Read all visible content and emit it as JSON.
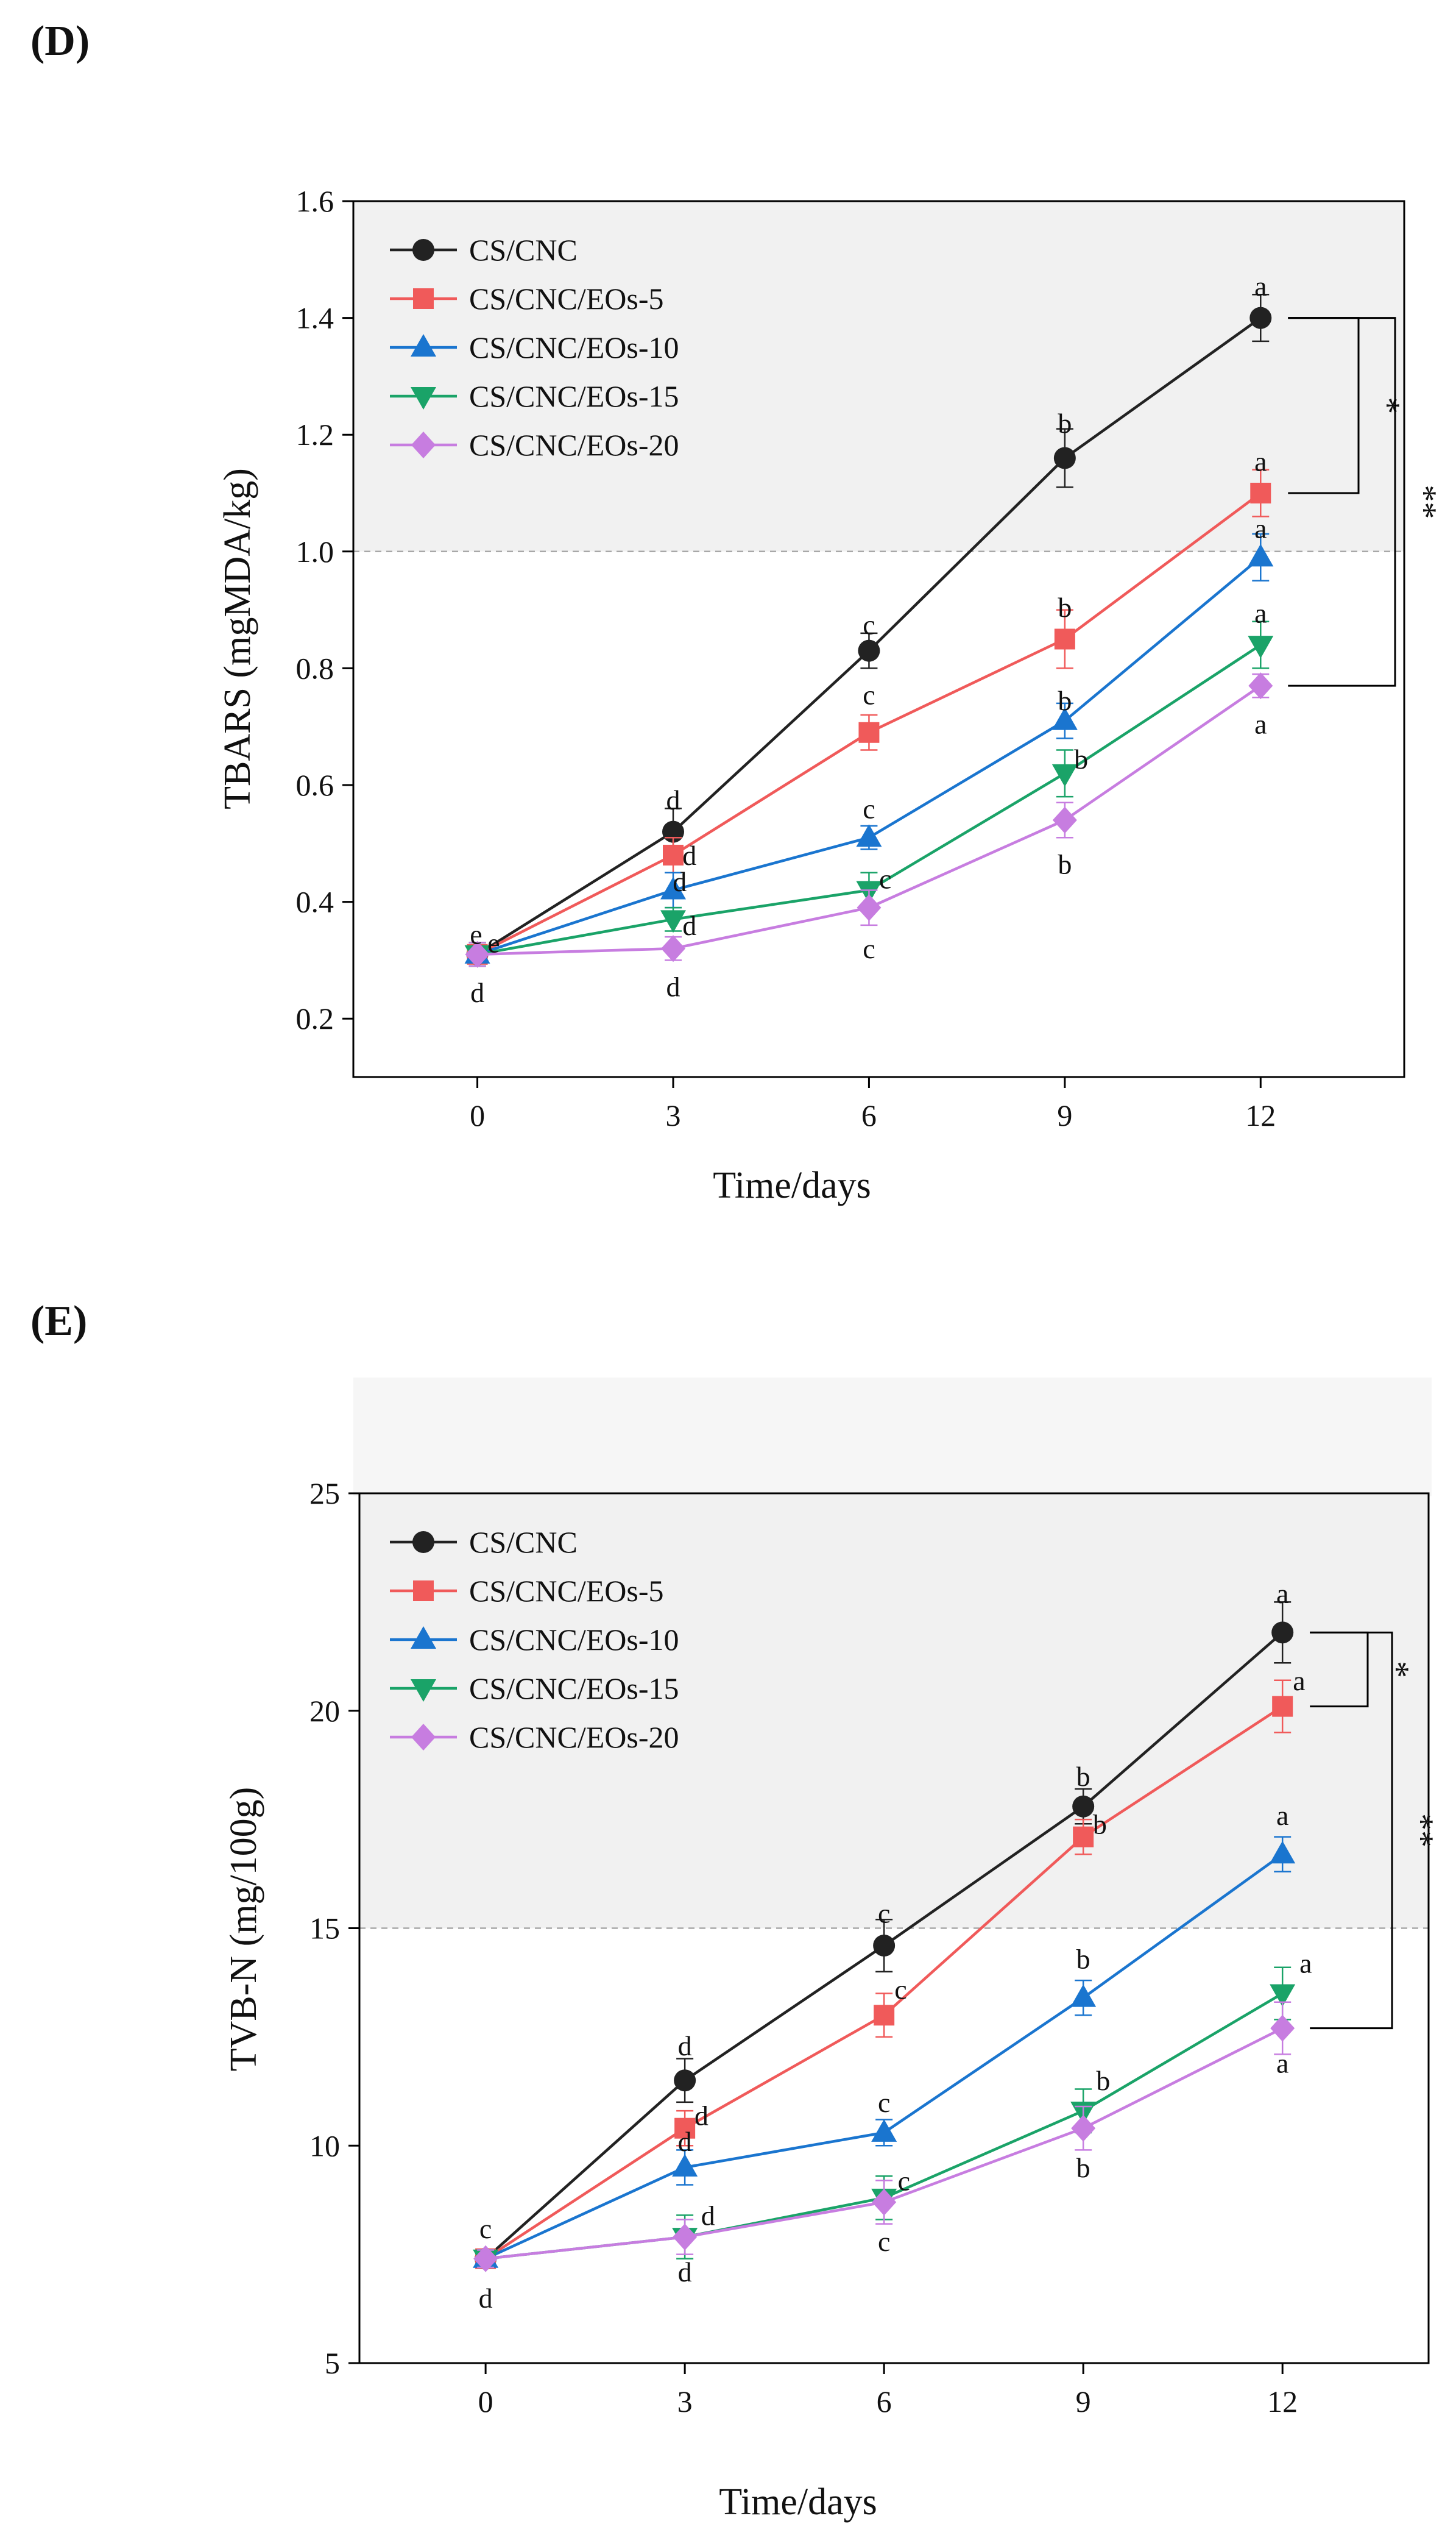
{
  "chart_data": [
    {
      "type": "line",
      "panel_label": "(D)",
      "xlabel": "Time/days",
      "ylabel": "TBARS (mgMDA/kg)",
      "xlim": [
        -1.9,
        14.2
      ],
      "ylim": [
        0.1,
        1.6
      ],
      "xticks": [
        0,
        3,
        6,
        9,
        12
      ],
      "yticks": [
        0.2,
        0.4,
        0.6,
        0.8,
        1.0,
        1.2,
        1.4,
        1.6
      ],
      "ytick_labels": [
        "0.2",
        "0.4",
        "0.6",
        "0.8",
        "1.0",
        "1.2",
        "1.4",
        "1.6"
      ],
      "threshold": 1.0,
      "shade_from": 1.0,
      "x": [
        0,
        3,
        6,
        9,
        12
      ],
      "series": [
        {
          "name": "CS/CNC",
          "color": "#222222",
          "marker": "circle",
          "values": [
            0.31,
            0.52,
            0.83,
            1.16,
            1.4
          ],
          "errors": [
            0.02,
            0.04,
            0.03,
            0.05,
            0.04
          ]
        },
        {
          "name": "CS/CNC/EOs-5",
          "color": "#f05a5a",
          "marker": "square",
          "values": [
            0.31,
            0.48,
            0.69,
            0.85,
            1.1
          ],
          "errors": [
            0.02,
            0.03,
            0.03,
            0.05,
            0.04
          ]
        },
        {
          "name": "CS/CNC/EOs-10",
          "color": "#1a75cf",
          "marker": "triangle-up",
          "values": [
            0.31,
            0.42,
            0.51,
            0.71,
            0.99
          ],
          "errors": [
            0.02,
            0.03,
            0.02,
            0.03,
            0.04
          ]
        },
        {
          "name": "CS/CNC/EOs-15",
          "color": "#1aa368",
          "marker": "triangle-down",
          "values": [
            0.31,
            0.37,
            0.42,
            0.62,
            0.84
          ],
          "errors": [
            0.02,
            0.02,
            0.03,
            0.04,
            0.04
          ]
        },
        {
          "name": "CS/CNC/EOs-20",
          "color": "#c77de0",
          "marker": "diamond",
          "values": [
            0.31,
            0.32,
            0.39,
            0.54,
            0.77
          ],
          "errors": [
            0.02,
            0.02,
            0.03,
            0.03,
            0.02
          ]
        }
      ],
      "annotations": [
        {
          "text": "e",
          "x": -0.02,
          "y": 0.345
        },
        {
          "text": "e",
          "x": 0.25,
          "y": 0.33
        },
        {
          "text": "d",
          "x": 0.0,
          "y": 0.245
        },
        {
          "text": "d",
          "x": 3.0,
          "y": 0.575
        },
        {
          "text": "d",
          "x": 3.25,
          "y": 0.48
        },
        {
          "text": "d",
          "x": 3.1,
          "y": 0.435
        },
        {
          "text": "d",
          "x": 3.25,
          "y": 0.36
        },
        {
          "text": "d",
          "x": 3.0,
          "y": 0.255
        },
        {
          "text": "c",
          "x": 6.0,
          "y": 0.875
        },
        {
          "text": "c",
          "x": 6.0,
          "y": 0.755
        },
        {
          "text": "c",
          "x": 6.0,
          "y": 0.56
        },
        {
          "text": "c",
          "x": 6.25,
          "y": 0.44
        },
        {
          "text": "c",
          "x": 6.0,
          "y": 0.32
        },
        {
          "text": "b",
          "x": 9.0,
          "y": 1.22
        },
        {
          "text": "b",
          "x": 9.0,
          "y": 0.905
        },
        {
          "text": "b",
          "x": 9.0,
          "y": 0.745
        },
        {
          "text": "b",
          "x": 9.25,
          "y": 0.645
        },
        {
          "text": "b",
          "x": 9.0,
          "y": 0.465
        },
        {
          "text": "a",
          "x": 12.0,
          "y": 1.455
        },
        {
          "text": "a",
          "x": 12.0,
          "y": 1.155
        },
        {
          "text": "a",
          "x": 12.0,
          "y": 1.04
        },
        {
          "text": "a",
          "x": 12.0,
          "y": 0.895
        },
        {
          "text": "a",
          "x": 12.0,
          "y": 0.705
        }
      ],
      "significance": [
        {
          "label": "*",
          "y_top": 1.4,
          "y_bottom": 1.1
        },
        {
          "label": "**",
          "y_top": 1.4,
          "y_bottom": 0.77
        }
      ]
    },
    {
      "type": "line",
      "panel_label": "(E)",
      "xlabel": "Time/days",
      "ylabel": "TVB-N (mg/100g)",
      "xlim": [
        -1.9,
        14.2
      ],
      "ylim": [
        5,
        25
      ],
      "xticks": [
        0,
        3,
        6,
        9,
        12
      ],
      "yticks": [
        5,
        10,
        15,
        20,
        25
      ],
      "ytick_labels": [
        "5",
        "10",
        "15",
        "20",
        "25"
      ],
      "threshold": 15,
      "shade_from": 15,
      "x": [
        0,
        3,
        6,
        9,
        12
      ],
      "series": [
        {
          "name": "CS/CNC",
          "color": "#222222",
          "marker": "circle",
          "values": [
            7.4,
            11.5,
            14.6,
            17.8,
            21.8
          ],
          "errors": [
            0.2,
            0.5,
            0.6,
            0.4,
            0.7
          ]
        },
        {
          "name": "CS/CNC/EOs-5",
          "color": "#f05a5a",
          "marker": "square",
          "values": [
            7.4,
            10.4,
            13.0,
            17.1,
            20.1
          ],
          "errors": [
            0.2,
            0.4,
            0.5,
            0.4,
            0.6
          ]
        },
        {
          "name": "CS/CNC/EOs-10",
          "color": "#1a75cf",
          "marker": "triangle-up",
          "values": [
            7.4,
            9.5,
            10.3,
            13.4,
            16.7
          ],
          "errors": [
            0.2,
            0.4,
            0.3,
            0.4,
            0.4
          ]
        },
        {
          "name": "CS/CNC/EOs-15",
          "color": "#1aa368",
          "marker": "triangle-down",
          "values": [
            7.4,
            7.9,
            8.8,
            10.8,
            13.5
          ],
          "errors": [
            0.2,
            0.5,
            0.5,
            0.5,
            0.6
          ]
        },
        {
          "name": "CS/CNC/EOs-20",
          "color": "#c77de0",
          "marker": "diamond",
          "values": [
            7.4,
            7.9,
            8.7,
            10.4,
            12.7
          ],
          "errors": [
            0.2,
            0.4,
            0.5,
            0.5,
            0.6
          ]
        }
      ],
      "annotations": [
        {
          "text": "c",
          "x": 0.0,
          "y": 8.1
        },
        {
          "text": "d",
          "x": 0.0,
          "y": 6.5
        },
        {
          "text": "d",
          "x": 3.0,
          "y": 12.3
        },
        {
          "text": "d",
          "x": 3.25,
          "y": 10.7
        },
        {
          "text": "d",
          "x": 3.0,
          "y": 10.1
        },
        {
          "text": "d",
          "x": 3.35,
          "y": 8.4
        },
        {
          "text": "d",
          "x": 3.0,
          "y": 7.1
        },
        {
          "text": "c",
          "x": 6.0,
          "y": 15.35
        },
        {
          "text": "c",
          "x": 6.25,
          "y": 13.6
        },
        {
          "text": "c",
          "x": 6.0,
          "y": 11.0
        },
        {
          "text": "c",
          "x": 6.3,
          "y": 9.2
        },
        {
          "text": "c",
          "x": 6.0,
          "y": 7.8
        },
        {
          "text": "b",
          "x": 9.0,
          "y": 18.5
        },
        {
          "text": "b",
          "x": 9.25,
          "y": 17.4
        },
        {
          "text": "b",
          "x": 9.0,
          "y": 14.3
        },
        {
          "text": "b",
          "x": 9.3,
          "y": 11.5
        },
        {
          "text": "b",
          "x": 9.0,
          "y": 9.5
        },
        {
          "text": "a",
          "x": 12.0,
          "y": 22.7
        },
        {
          "text": "a",
          "x": 12.25,
          "y": 20.7
        },
        {
          "text": "a",
          "x": 12.0,
          "y": 17.6
        },
        {
          "text": "a",
          "x": 12.35,
          "y": 14.2
        },
        {
          "text": "a",
          "x": 12.0,
          "y": 11.9
        }
      ],
      "significance": [
        {
          "label": "*",
          "y_top": 21.8,
          "y_bottom": 20.1
        },
        {
          "label": "**",
          "y_top": 21.8,
          "y_bottom": 12.7
        }
      ]
    }
  ]
}
